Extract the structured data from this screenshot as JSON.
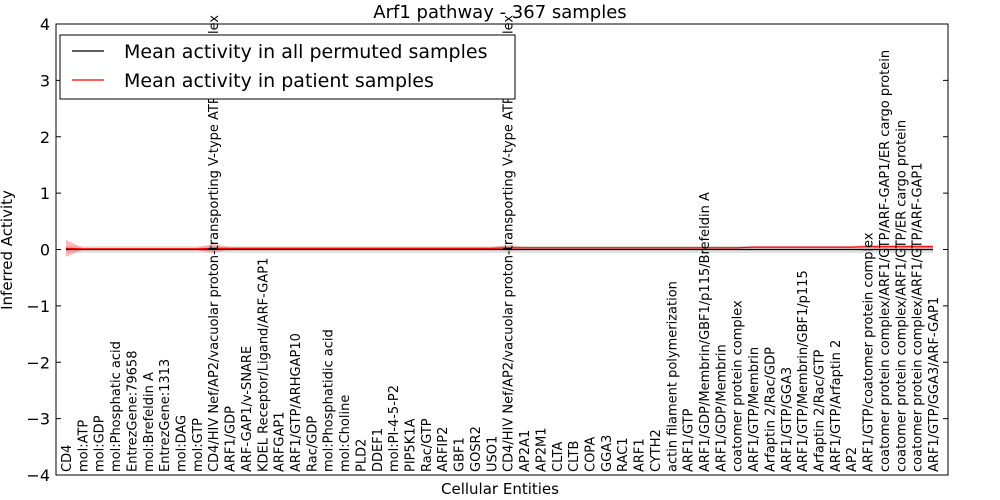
{
  "chart_data": {
    "type": "line",
    "title": "Arf1 pathway - 367 samples",
    "xlabel": "Cellular Entities",
    "ylabel": "Inferred Activity",
    "ylim": [
      -4,
      4
    ],
    "yticks": [
      -4,
      -3,
      -2,
      -1,
      0,
      1,
      2,
      3,
      4
    ],
    "grid": false,
    "legend_position": "top-left",
    "categories": [
      "CD4",
      "mol:ATP",
      "mol:GDP",
      "mol:Phosphatic acid",
      "EntrezGene:79658",
      "mol:Brefeldin A",
      "EntrezGene:1313",
      "mol:DAG",
      "mol:GTP",
      "CD4/HIV Nef/AP2/vacuolar proton-transporting V-type ATPase complex",
      "ARF1/GDP",
      "ARF-GAP1/v-SNARE",
      "KDEL Receptor/Ligand/ARF-GAP1",
      "ARFGAP1",
      "ARF1/GTP/ARHGAP10",
      "Rac/GDP",
      "mol:Phosphatidic acid",
      "mol:Choline",
      "PLD2",
      "DDEF1",
      "mol:PI-4-5-P2",
      "PIP5K1A",
      "Rac/GTP",
      "ARFIP2",
      "GBF1",
      "GOSR2",
      "USO1",
      "CD4/HIV Nef/AP2/vacuolar proton-transporting V-type ATPase complex",
      "AP2A1",
      "AP2M1",
      "CLTA",
      "CLTB",
      "COPA",
      "GGA3",
      "RAC1",
      "ARF1",
      "CYTH2",
      "actin filament polymerization",
      "ARF1/GTP",
      "ARF1/GDP/Membrin/GBF1/p115/Brefeldin A",
      "ARF1/GDP/Membrin",
      "coatomer protein complex",
      "ARF1/GTP/Membrin",
      "Arfaptin 2/Rac/GDP",
      "ARF1/GTP/GGA3",
      "ARF1/GTP/Membrin/GBF1/p115",
      "Arfaptin 2/Rac/GTP",
      "ARF1/GTP/Arfaptin 2",
      "AP2",
      "ARF1/GTP/coatomer protein complex",
      "coatomer protein complex/ARF1/GTP/ARF-GAP1/ER cargo protein",
      "coatomer protein complex/ARF1/GTP/ER cargo protein",
      "coatomer protein complex/ARF1/GTP/ARF-GAP1",
      "ARF1/GTP/GGA3/ARF-GAP1"
    ],
    "series": [
      {
        "name": "Mean activity in all permuted samples",
        "color": "#000000",
        "values": [
          0,
          0,
          0,
          0,
          0,
          0,
          0,
          0,
          0,
          0,
          0,
          0,
          0,
          0,
          0,
          0,
          0,
          0,
          0,
          0,
          0,
          0,
          0,
          0,
          0,
          0,
          0,
          0,
          0,
          0,
          0,
          0,
          0,
          0,
          0,
          0,
          0,
          0,
          0,
          0,
          0,
          0,
          0,
          0,
          0,
          0,
          0,
          0,
          0,
          0,
          0,
          0,
          0,
          0
        ],
        "band_half_width": [
          0.06,
          0.06,
          0.06,
          0.06,
          0.06,
          0.06,
          0.06,
          0.06,
          0.06,
          0.06,
          0.06,
          0.06,
          0.06,
          0.06,
          0.06,
          0.06,
          0.06,
          0.06,
          0.06,
          0.06,
          0.06,
          0.06,
          0.06,
          0.06,
          0.06,
          0.06,
          0.06,
          0.06,
          0.06,
          0.06,
          0.06,
          0.06,
          0.06,
          0.06,
          0.06,
          0.06,
          0.06,
          0.06,
          0.06,
          0.06,
          0.06,
          0.06,
          0.06,
          0.06,
          0.06,
          0.06,
          0.06,
          0.06,
          0.06,
          0.06,
          0.06,
          0.06,
          0.06,
          0.06
        ]
      },
      {
        "name": "Mean activity in patient samples",
        "color": "#ff0000",
        "values": [
          0.02,
          0.01,
          0.01,
          0.01,
          0.01,
          0.01,
          0.01,
          0.01,
          0.01,
          0.02,
          0.02,
          0.02,
          0.02,
          0.02,
          0.02,
          0.02,
          0.02,
          0.02,
          0.02,
          0.02,
          0.02,
          0.02,
          0.02,
          0.02,
          0.02,
          0.02,
          0.02,
          0.03,
          0.03,
          0.03,
          0.03,
          0.03,
          0.03,
          0.03,
          0.03,
          0.03,
          0.03,
          0.03,
          0.03,
          0.03,
          0.03,
          0.03,
          0.04,
          0.04,
          0.04,
          0.04,
          0.04,
          0.04,
          0.04,
          0.05,
          0.05,
          0.05,
          0.05,
          0.05
        ],
        "band_half_width": [
          0.15,
          0.02,
          0.02,
          0.02,
          0.02,
          0.02,
          0.02,
          0.02,
          0.02,
          0.08,
          0.02,
          0.02,
          0.02,
          0.02,
          0.02,
          0.02,
          0.02,
          0.02,
          0.02,
          0.02,
          0.02,
          0.02,
          0.02,
          0.02,
          0.02,
          0.02,
          0.02,
          0.05,
          0.02,
          0.02,
          0.02,
          0.02,
          0.02,
          0.02,
          0.02,
          0.02,
          0.02,
          0.02,
          0.02,
          0.02,
          0.02,
          0.02,
          0.02,
          0.02,
          0.02,
          0.02,
          0.02,
          0.02,
          0.02,
          0.03,
          0.03,
          0.03,
          0.03,
          0.03
        ]
      }
    ]
  }
}
